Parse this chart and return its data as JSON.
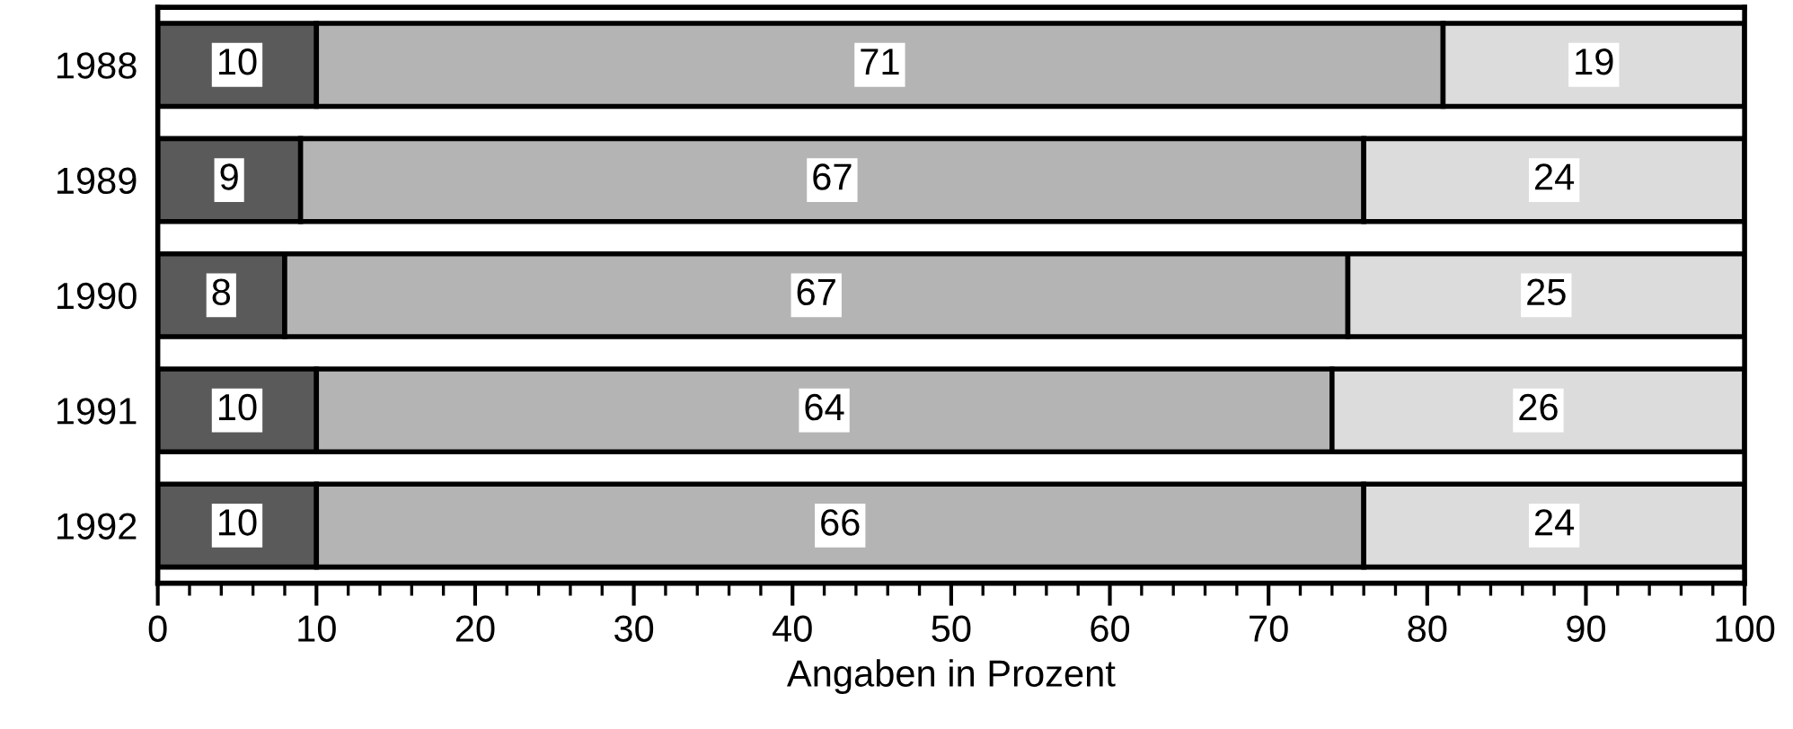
{
  "chart_data": {
    "type": "bar",
    "orientation": "horizontal",
    "stacked": true,
    "data_labels": true,
    "xlabel": "Angaben in Prozent",
    "categories": [
      "1988",
      "1989",
      "1990",
      "1991",
      "1992"
    ],
    "series": [
      {
        "color": "#5a5a5a",
        "values": [
          10,
          9,
          8,
          10,
          10
        ]
      },
      {
        "color": "#b4b4b4",
        "values": [
          71,
          67,
          67,
          64,
          66
        ]
      },
      {
        "color": "#dcdcdc",
        "values": [
          19,
          24,
          25,
          26,
          24
        ]
      }
    ],
    "xlim": [
      0,
      100
    ],
    "xticks": [
      0,
      {
        "value": 2,
        "label": null
      },
      {
        "value": 4,
        "label": null
      },
      {
        "value": 6,
        "label": null
      },
      {
        "value": 8,
        "label": null
      },
      10,
      {
        "value": 12,
        "label": null
      },
      {
        "value": 14,
        "label": null
      },
      {
        "value": 16,
        "label": null
      },
      {
        "value": 18,
        "label": null
      },
      20,
      {
        "value": 22,
        "label": null
      },
      {
        "value": 24,
        "label": null
      },
      {
        "value": 26,
        "label": null
      },
      {
        "value": 28,
        "label": null
      },
      30,
      {
        "value": 32,
        "label": null
      },
      {
        "value": 34,
        "label": null
      },
      {
        "value": 36,
        "label": null
      },
      {
        "value": 38,
        "label": null
      },
      40,
      {
        "value": 42,
        "label": null
      },
      {
        "value": 44,
        "label": null
      },
      {
        "value": 46,
        "label": null
      },
      {
        "value": 48,
        "label": null
      },
      50,
      {
        "value": 52,
        "label": null
      },
      {
        "value": 54,
        "label": null
      },
      {
        "value": 56,
        "label": null
      },
      {
        "value": 58,
        "label": null
      },
      60,
      {
        "value": 62,
        "label": null
      },
      {
        "value": 64,
        "label": null
      },
      {
        "value": 66,
        "label": null
      },
      {
        "value": 68,
        "label": null
      },
      70,
      {
        "value": 72,
        "label": null
      },
      {
        "value": 74,
        "label": null
      },
      {
        "value": 76,
        "label": null
      },
      {
        "value": 78,
        "label": null
      },
      80,
      {
        "value": 82,
        "label": null
      },
      {
        "value": 84,
        "label": null
      },
      {
        "value": 86,
        "label": null
      },
      {
        "value": 88,
        "label": null
      },
      90,
      {
        "value": 92,
        "label": null
      },
      {
        "value": 94,
        "label": null
      },
      {
        "value": 96,
        "label": null
      },
      {
        "value": 98,
        "label": null
      },
      100
    ],
    "grid": false
  }
}
